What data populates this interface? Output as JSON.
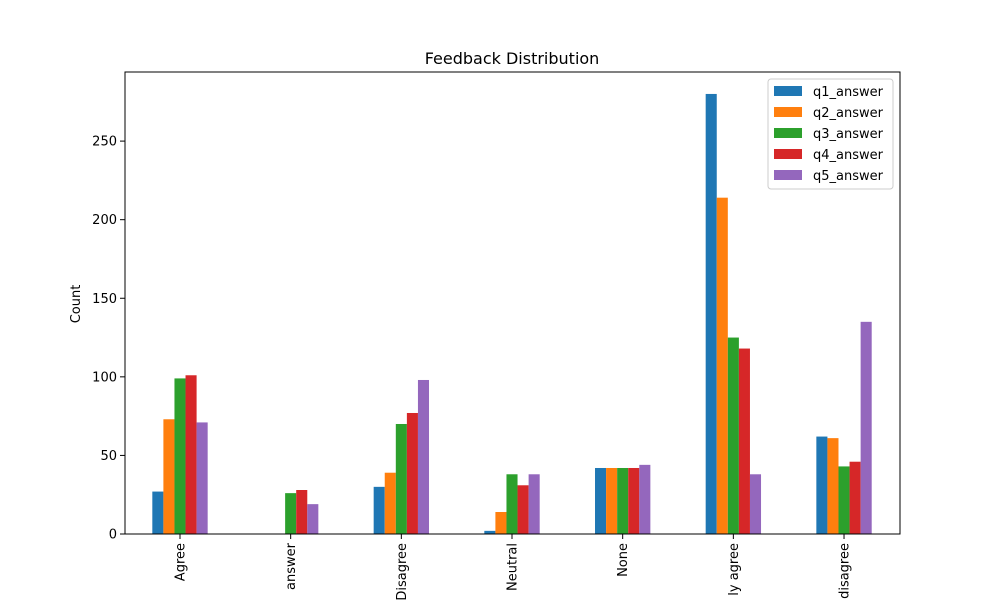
{
  "chart_data": {
    "type": "bar",
    "title": "Feedback Distribution",
    "xlabel": "",
    "ylabel": "Count",
    "ylim": [
      0,
      295
    ],
    "yticks": [
      0,
      50,
      100,
      150,
      200,
      250
    ],
    "categories": [
      "Agree",
      "answer",
      "Disagree",
      "Neutral",
      "None",
      "ly agree",
      "disagree"
    ],
    "series": [
      {
        "name": "q1_answer",
        "color": "#1f77b4",
        "values": [
          27,
          0,
          30,
          2,
          42,
          280,
          62
        ]
      },
      {
        "name": "q2_answer",
        "color": "#ff7f0e",
        "values": [
          73,
          0,
          39,
          14,
          42,
          214,
          61
        ]
      },
      {
        "name": "q3_answer",
        "color": "#2ca02c",
        "values": [
          99,
          26,
          70,
          38,
          42,
          125,
          43
        ]
      },
      {
        "name": "q4_answer",
        "color": "#d62728",
        "values": [
          101,
          28,
          77,
          31,
          42,
          118,
          46
        ]
      },
      {
        "name": "q5_answer",
        "color": "#9467bd",
        "values": [
          71,
          19,
          98,
          38,
          44,
          38,
          135
        ]
      }
    ],
    "grid": false,
    "legend": "top-right"
  }
}
